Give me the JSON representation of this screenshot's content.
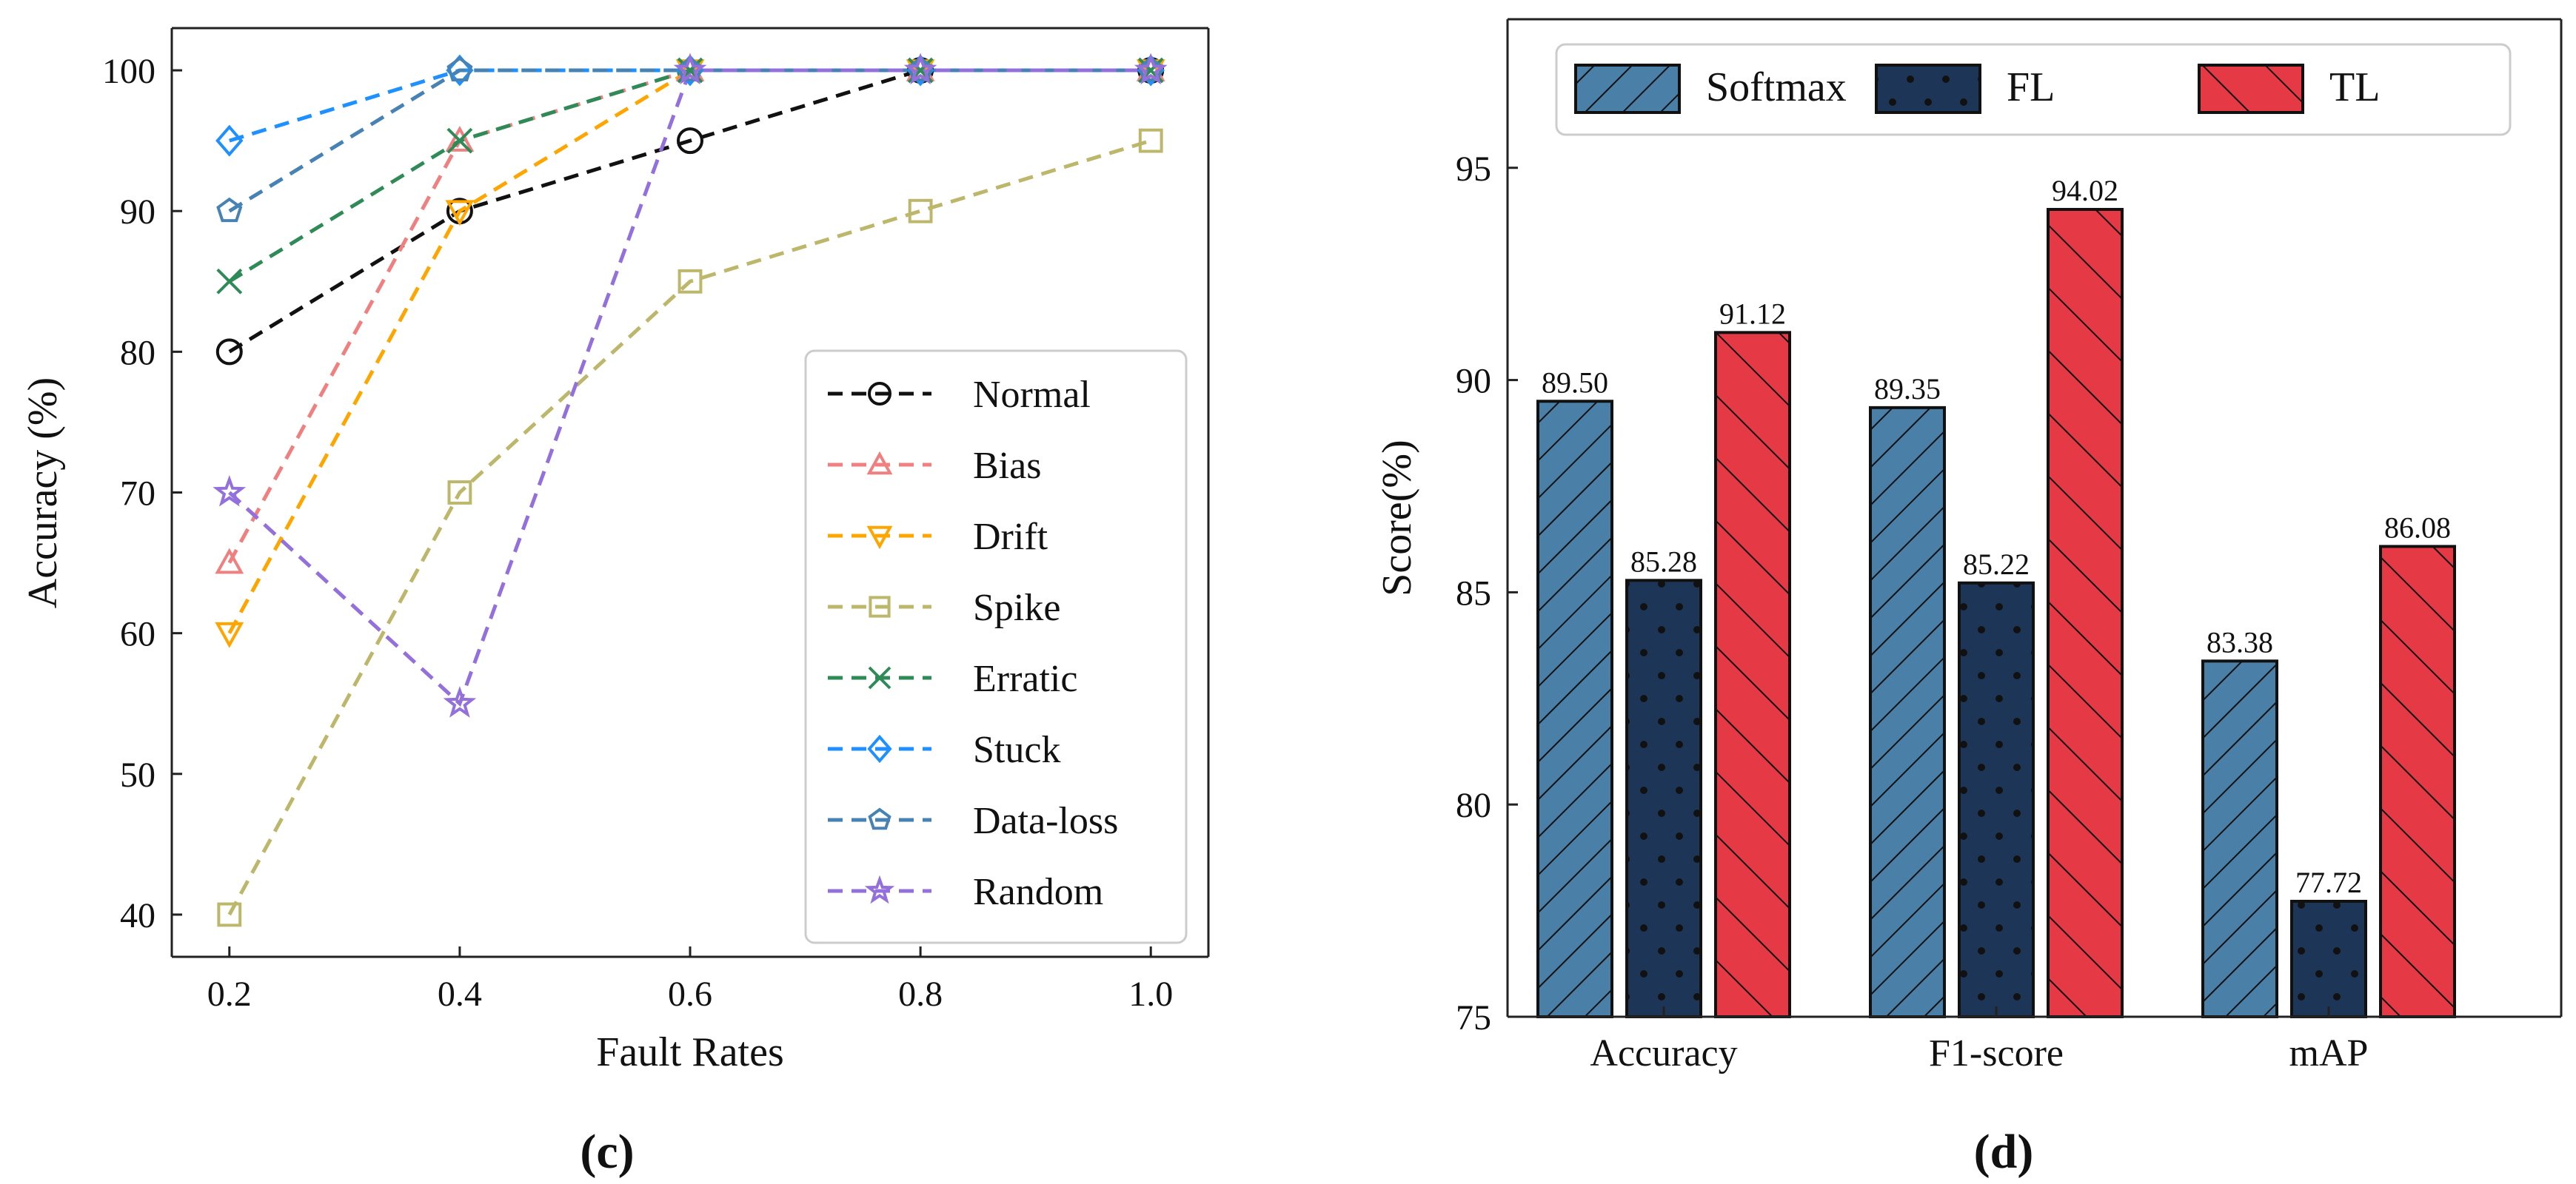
{
  "chart_data": [
    {
      "id": "c",
      "type": "line",
      "panel_label": "(c)",
      "xlabel": "Fault Rates",
      "ylabel": "Accuracy (%)",
      "x": [
        0.2,
        0.4,
        0.6,
        0.8,
        1.0
      ],
      "xticks": [
        "0.2",
        "0.4",
        "0.6",
        "0.8",
        "1.0"
      ],
      "xlim": [
        0.15,
        1.05
      ],
      "ylim": [
        37,
        103
      ],
      "yticks": [
        40,
        50,
        60,
        70,
        80,
        90,
        100
      ],
      "legend_position": "center-right",
      "series": [
        {
          "name": "Normal",
          "color": "#111111",
          "marker": "circle",
          "values": [
            80,
            90,
            95,
            100,
            100
          ]
        },
        {
          "name": "Bias",
          "color": "#f08080",
          "marker": "triangle-up",
          "values": [
            65,
            95,
            100,
            100,
            100
          ]
        },
        {
          "name": "Drift",
          "color": "#ffa500",
          "marker": "triangle-down",
          "values": [
            60,
            90,
            100,
            100,
            100
          ]
        },
        {
          "name": "Spike",
          "color": "#bdb76b",
          "marker": "square",
          "values": [
            40,
            70,
            85,
            90,
            95
          ]
        },
        {
          "name": "Erratic",
          "color": "#2e8b57",
          "marker": "x",
          "values": [
            85,
            95,
            100,
            100,
            100
          ]
        },
        {
          "name": "Stuck",
          "color": "#1e90ff",
          "marker": "diamond",
          "values": [
            95,
            100,
            100,
            100,
            100
          ]
        },
        {
          "name": "Data-loss",
          "color": "#4682b4",
          "marker": "pentagon",
          "values": [
            90,
            100,
            100,
            100,
            100
          ]
        },
        {
          "name": "Random",
          "color": "#9370db",
          "marker": "star",
          "values": [
            70,
            55,
            100,
            100,
            100
          ]
        }
      ]
    },
    {
      "id": "d",
      "type": "bar",
      "panel_label": "(d)",
      "xlabel": "",
      "ylabel": "Score(%)",
      "categories": [
        "Accuracy",
        "F1-score",
        "mAP"
      ],
      "ylim": [
        75,
        98.5
      ],
      "yticks": [
        75,
        80,
        85,
        90,
        95
      ],
      "legend_position": "top",
      "series": [
        {
          "name": "Softmax",
          "color": "#4a7fa7",
          "hatch": "forward-diagonal",
          "values": [
            89.5,
            89.35,
            83.38
          ],
          "labels": [
            "89.50",
            "89.35",
            "83.38"
          ]
        },
        {
          "name": "FL",
          "color": "#1d3557",
          "hatch": "dots",
          "values": [
            85.28,
            85.22,
            77.72
          ],
          "labels": [
            "85.28",
            "85.22",
            "77.72"
          ]
        },
        {
          "name": "TL",
          "color": "#e63946",
          "hatch": "back-diagonal",
          "values": [
            91.12,
            94.02,
            86.08
          ],
          "labels": [
            "91.12",
            "94.02",
            "86.08"
          ]
        }
      ]
    }
  ]
}
